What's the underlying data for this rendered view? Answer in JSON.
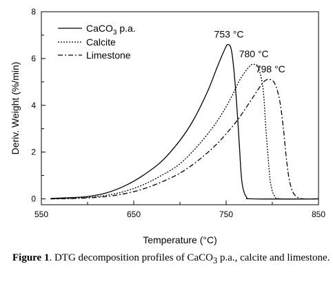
{
  "chart_data": {
    "type": "line",
    "xlabel": "Temperature (°C)",
    "ylabel": "Deriv. Weight (%/min)",
    "xlim": [
      550,
      850
    ],
    "ylim": [
      -0.25,
      8
    ],
    "xticks": [
      "550",
      "650",
      "750",
      "850"
    ],
    "yticks": [
      "0",
      "2",
      "4",
      "6",
      "8"
    ],
    "grid": false,
    "legend_position": "top-left",
    "series": [
      {
        "name": "CaCO3 p.a.",
        "style": "solid",
        "points": [
          [
            560,
            0.02
          ],
          [
            580,
            0.05
          ],
          [
            600,
            0.1
          ],
          [
            620,
            0.25
          ],
          [
            640,
            0.55
          ],
          [
            660,
            1.0
          ],
          [
            680,
            1.6
          ],
          [
            700,
            2.5
          ],
          [
            715,
            3.4
          ],
          [
            730,
            4.6
          ],
          [
            740,
            5.6
          ],
          [
            748,
            6.35
          ],
          [
            752,
            6.6
          ],
          [
            756,
            6.3
          ],
          [
            760,
            4.8
          ],
          [
            764,
            2.5
          ],
          [
            766,
            1.2
          ],
          [
            768,
            0.5
          ],
          [
            772,
            0.08
          ],
          [
            780,
            0.0
          ],
          [
            850,
            0.0
          ]
        ]
      },
      {
        "name": "Calcite",
        "style": "dotted",
        "points": [
          [
            560,
            0.0
          ],
          [
            580,
            0.02
          ],
          [
            600,
            0.06
          ],
          [
            620,
            0.15
          ],
          [
            640,
            0.32
          ],
          [
            660,
            0.6
          ],
          [
            680,
            1.0
          ],
          [
            700,
            1.5
          ],
          [
            720,
            2.3
          ],
          [
            740,
            3.3
          ],
          [
            755,
            4.3
          ],
          [
            765,
            5.1
          ],
          [
            775,
            5.65
          ],
          [
            780,
            5.75
          ],
          [
            785,
            5.6
          ],
          [
            790,
            4.7
          ],
          [
            793,
            3.0
          ],
          [
            796,
            1.5
          ],
          [
            798,
            0.7
          ],
          [
            802,
            0.15
          ],
          [
            810,
            0.0
          ],
          [
            850,
            0.0
          ]
        ]
      },
      {
        "name": "Limestone",
        "style": "dashdot",
        "points": [
          [
            560,
            0.0
          ],
          [
            580,
            0.01
          ],
          [
            600,
            0.04
          ],
          [
            620,
            0.1
          ],
          [
            640,
            0.22
          ],
          [
            660,
            0.42
          ],
          [
            680,
            0.72
          ],
          [
            700,
            1.1
          ],
          [
            720,
            1.65
          ],
          [
            740,
            2.35
          ],
          [
            760,
            3.25
          ],
          [
            775,
            4.1
          ],
          [
            785,
            4.7
          ],
          [
            792,
            5.05
          ],
          [
            798,
            5.1
          ],
          [
            803,
            4.9
          ],
          [
            808,
            4.2
          ],
          [
            812,
            3.0
          ],
          [
            815,
            1.8
          ],
          [
            818,
            0.9
          ],
          [
            822,
            0.3
          ],
          [
            828,
            0.05
          ],
          [
            835,
            0.0
          ],
          [
            850,
            0.0
          ]
        ]
      }
    ],
    "annotations": [
      {
        "label": "753 °C",
        "x": 753,
        "y": 6.9
      },
      {
        "label": "780 °C",
        "x": 780,
        "y": 6.05
      },
      {
        "label": "798 °C",
        "x": 798,
        "y": 5.4
      }
    ]
  },
  "legend_labels": {
    "s0_main": "CaCO",
    "s0_sub": "3",
    "s0_rest": " p.a.",
    "s1": "Calcite",
    "s2": "Limestone"
  },
  "annotation_labels": [
    "753 °C",
    "780 °C",
    "798 °C"
  ],
  "axis_labels": {
    "x": "Temperature (°C)",
    "y": "Deriv. Weight (%/min)"
  },
  "caption": {
    "lead": "Figure 1",
    "text_a": ". DTG decomposition profiles of CaCO",
    "sub": "3",
    "text_b": " p.a., calcite and limestone."
  }
}
